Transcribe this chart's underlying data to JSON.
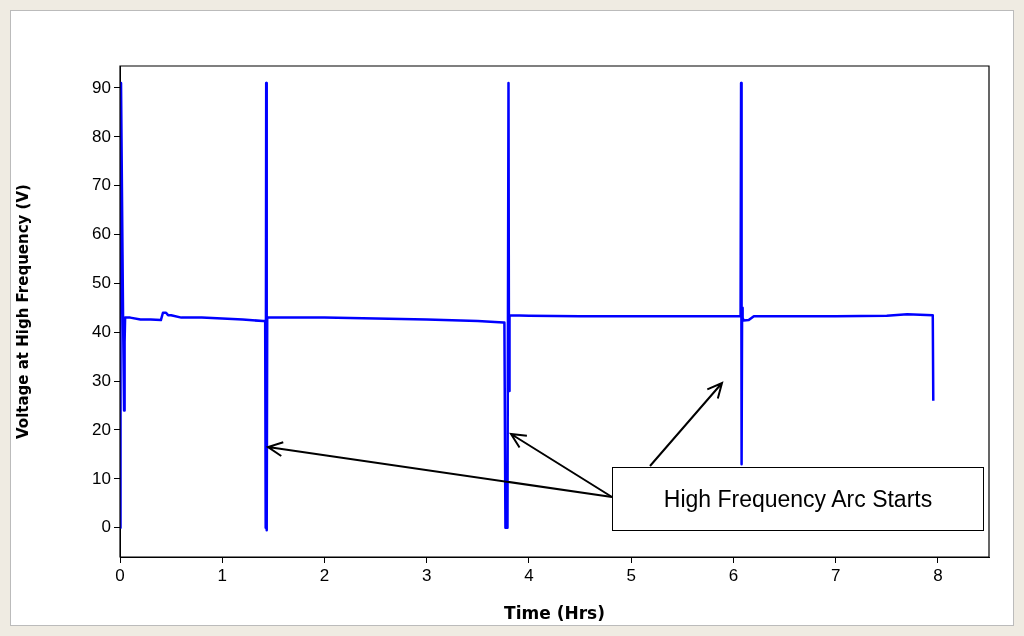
{
  "chart_data": {
    "type": "line",
    "xlabel": "Time (Hrs)",
    "ylabel": "Voltage at High Frequency (V)",
    "xlim": [
      0,
      8.5
    ],
    "xticks": [
      0,
      1,
      2,
      3,
      4,
      5,
      6,
      7,
      8
    ],
    "ylim": [
      -6,
      94.5
    ],
    "yticks": [
      0,
      10,
      20,
      30,
      40,
      50,
      60,
      70,
      80,
      90
    ],
    "series": [
      {
        "color": "#0000ff",
        "x": [
          0,
          0.005,
          0.01,
          0.03,
          0.04,
          0.045,
          0.05,
          0.1,
          0.2,
          0.3,
          0.4,
          0.42,
          0.45,
          0.47,
          0.5,
          0.6,
          0.8,
          1.0,
          1.2,
          1.4,
          1.42,
          1.425,
          1.43,
          1.435,
          1.44,
          1.45,
          1.6,
          2.0,
          2.5,
          3.0,
          3.5,
          3.75,
          3.76,
          3.77,
          3.79,
          3.8,
          3.805,
          3.81,
          3.815,
          3.82,
          4.0,
          4.5,
          5.0,
          5.5,
          6.0,
          6.07,
          6.075,
          6.08,
          6.085,
          6.09,
          6.1,
          6.15,
          6.2,
          6.5,
          7.0,
          7.5,
          7.7,
          7.95,
          7.955
        ],
        "values": [
          0,
          91,
          91,
          43,
          24,
          38,
          43,
          43,
          42.6,
          42.6,
          42.5,
          44,
          44,
          43.5,
          43.5,
          43,
          43,
          42.8,
          42.6,
          42.3,
          42.3,
          0,
          91,
          -0.5,
          43,
          43,
          43,
          43,
          42.8,
          42.6,
          42.3,
          42,
          42,
          0,
          0,
          91,
          28,
          43.5,
          43.5,
          43.5,
          43.4,
          43.3,
          43.3,
          43.3,
          43.3,
          43.3,
          91,
          13,
          45,
          43,
          42.4,
          42.5,
          43.3,
          43.3,
          43.3,
          43.4,
          43.7,
          43.5,
          26
        ]
      }
    ],
    "annotations": [
      "High Frequency Arc Starts"
    ]
  }
}
